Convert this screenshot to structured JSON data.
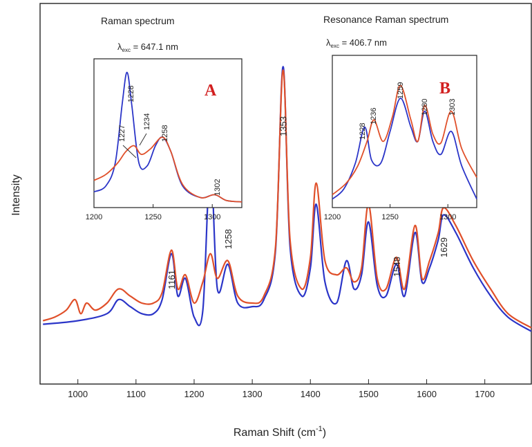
{
  "chart_data": [
    {
      "type": "line",
      "xlabel": "Raman Shift (cm",
      "xlabel_sup": "-1",
      "xlabel_end": ")",
      "ylabel": "Intensity",
      "xlim": [
        935,
        1780
      ],
      "ylim": [
        0,
        1
      ],
      "x_ticks": [
        1000,
        1100,
        1200,
        1300,
        1400,
        1500,
        1600,
        1700
      ],
      "peak_labels": [
        "1161",
        "1258",
        "1353",
        "1548",
        "1629"
      ],
      "peak_positions": [
        1161,
        1258,
        1353,
        1548,
        1629
      ],
      "series": [
        {
          "color": "#2b35c8",
          "x": [
            940,
            1000,
            1050,
            1070,
            1090,
            1110,
            1130,
            1145,
            1161,
            1172,
            1185,
            1200,
            1215,
            1228,
            1240,
            1258,
            1275,
            1300,
            1320,
            1340,
            1353,
            1365,
            1385,
            1400,
            1410,
            1425,
            1445,
            1462,
            1475,
            1488,
            1500,
            1515,
            1530,
            1548,
            1562,
            1580,
            1592,
            1605,
            1620,
            1629,
            1650,
            1680,
            1710,
            1740,
            1780
          ],
          "y": [
            0.14,
            0.15,
            0.17,
            0.21,
            0.19,
            0.17,
            0.17,
            0.21,
            0.34,
            0.22,
            0.27,
            0.16,
            0.18,
            0.6,
            0.24,
            0.31,
            0.2,
            0.19,
            0.21,
            0.35,
            0.87,
            0.36,
            0.22,
            0.3,
            0.48,
            0.26,
            0.2,
            0.32,
            0.24,
            0.28,
            0.43,
            0.25,
            0.22,
            0.31,
            0.22,
            0.4,
            0.26,
            0.3,
            0.38,
            0.45,
            0.4,
            0.3,
            0.22,
            0.16,
            0.12
          ]
        },
        {
          "color": "#e0502a",
          "x": [
            940,
            960,
            980,
            995,
            1005,
            1015,
            1030,
            1050,
            1070,
            1090,
            1110,
            1130,
            1145,
            1161,
            1172,
            1185,
            1200,
            1215,
            1228,
            1240,
            1258,
            1275,
            1300,
            1320,
            1340,
            1353,
            1365,
            1385,
            1400,
            1410,
            1425,
            1445,
            1462,
            1475,
            1488,
            1500,
            1515,
            1530,
            1548,
            1562,
            1580,
            1592,
            1605,
            1620,
            1629,
            1650,
            1680,
            1710,
            1740,
            1780
          ],
          "y": [
            0.15,
            0.16,
            0.18,
            0.21,
            0.17,
            0.2,
            0.18,
            0.2,
            0.24,
            0.22,
            0.2,
            0.2,
            0.23,
            0.35,
            0.24,
            0.28,
            0.2,
            0.26,
            0.34,
            0.27,
            0.32,
            0.22,
            0.2,
            0.22,
            0.36,
            0.86,
            0.38,
            0.24,
            0.33,
            0.54,
            0.32,
            0.28,
            0.3,
            0.26,
            0.3,
            0.48,
            0.27,
            0.24,
            0.33,
            0.24,
            0.42,
            0.27,
            0.32,
            0.4,
            0.47,
            0.42,
            0.32,
            0.24,
            0.17,
            0.13
          ]
        }
      ]
    },
    {
      "type": "line",
      "title": "Raman spectrum",
      "subtitle_lambda": "λ",
      "subtitle_sub": "exc",
      "subtitle_value": " = 647.1 nm",
      "panel_letter": "A",
      "xlim": [
        1200,
        1325
      ],
      "ylim": [
        0,
        1
      ],
      "x_ticks": [
        1200,
        1250,
        1300
      ],
      "peak_labels": [
        "1228",
        "1227",
        "1234",
        "1258",
        "1302"
      ],
      "series": [
        {
          "color": "#2b35c8",
          "x": [
            1200,
            1210,
            1218,
            1224,
            1228,
            1232,
            1238,
            1245,
            1252,
            1258,
            1265,
            1275,
            1290,
            1302,
            1312,
            1325
          ],
          "y": [
            0.1,
            0.14,
            0.3,
            0.72,
            0.93,
            0.7,
            0.3,
            0.28,
            0.42,
            0.48,
            0.38,
            0.14,
            0.06,
            0.08,
            0.04,
            0.03
          ]
        },
        {
          "color": "#e0502a",
          "x": [
            1200,
            1210,
            1220,
            1227,
            1234,
            1240,
            1248,
            1258,
            1265,
            1275,
            1290,
            1302,
            1312,
            1325
          ],
          "y": [
            0.18,
            0.22,
            0.3,
            0.38,
            0.42,
            0.36,
            0.4,
            0.48,
            0.38,
            0.15,
            0.06,
            0.08,
            0.04,
            0.03
          ]
        }
      ]
    },
    {
      "type": "line",
      "title": "Resonance Raman spectrum",
      "subtitle_lambda": "λ",
      "subtitle_sub": "exc",
      "subtitle_value": " = 406.7 nm",
      "panel_letter": "B",
      "xlim": [
        1200,
        1325
      ],
      "ylim": [
        0,
        1
      ],
      "x_ticks": [
        1200,
        1250,
        1300
      ],
      "peak_labels": [
        "1228",
        "1236",
        "1259",
        "1280",
        "1303"
      ],
      "series": [
        {
          "color": "#2b35c8",
          "x": [
            1200,
            1210,
            1220,
            1228,
            1234,
            1242,
            1250,
            1259,
            1268,
            1274,
            1280,
            1287,
            1294,
            1303,
            1312,
            1325
          ],
          "y": [
            0.05,
            0.12,
            0.3,
            0.55,
            0.32,
            0.3,
            0.52,
            0.75,
            0.55,
            0.45,
            0.66,
            0.45,
            0.36,
            0.52,
            0.28,
            0.05
          ]
        },
        {
          "color": "#e0502a",
          "x": [
            1200,
            1212,
            1222,
            1230,
            1236,
            1244,
            1252,
            1259,
            1268,
            1274,
            1280,
            1287,
            1294,
            1303,
            1312,
            1325
          ],
          "y": [
            0.08,
            0.16,
            0.28,
            0.45,
            0.6,
            0.45,
            0.62,
            0.84,
            0.6,
            0.45,
            0.7,
            0.5,
            0.44,
            0.66,
            0.4,
            0.2
          ]
        }
      ]
    }
  ]
}
